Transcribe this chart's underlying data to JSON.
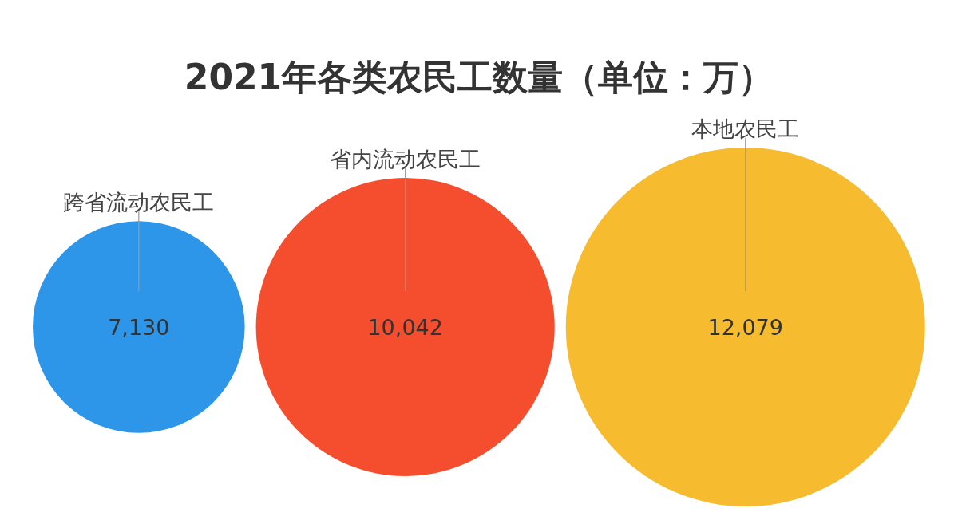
{
  "chart_data": {
    "type": "other",
    "title": "2021年各类农民工数量（单位：万）",
    "categories": [
      "跨省流动农民工",
      "省内流动农民工",
      "本地农民工"
    ],
    "values": [
      7130,
      10042,
      12079
    ],
    "colors": [
      "#2e96e8",
      "#f44e2e",
      "#f6bb2e"
    ],
    "value_labels": [
      "7,130",
      "10,042",
      "12,079"
    ]
  }
}
